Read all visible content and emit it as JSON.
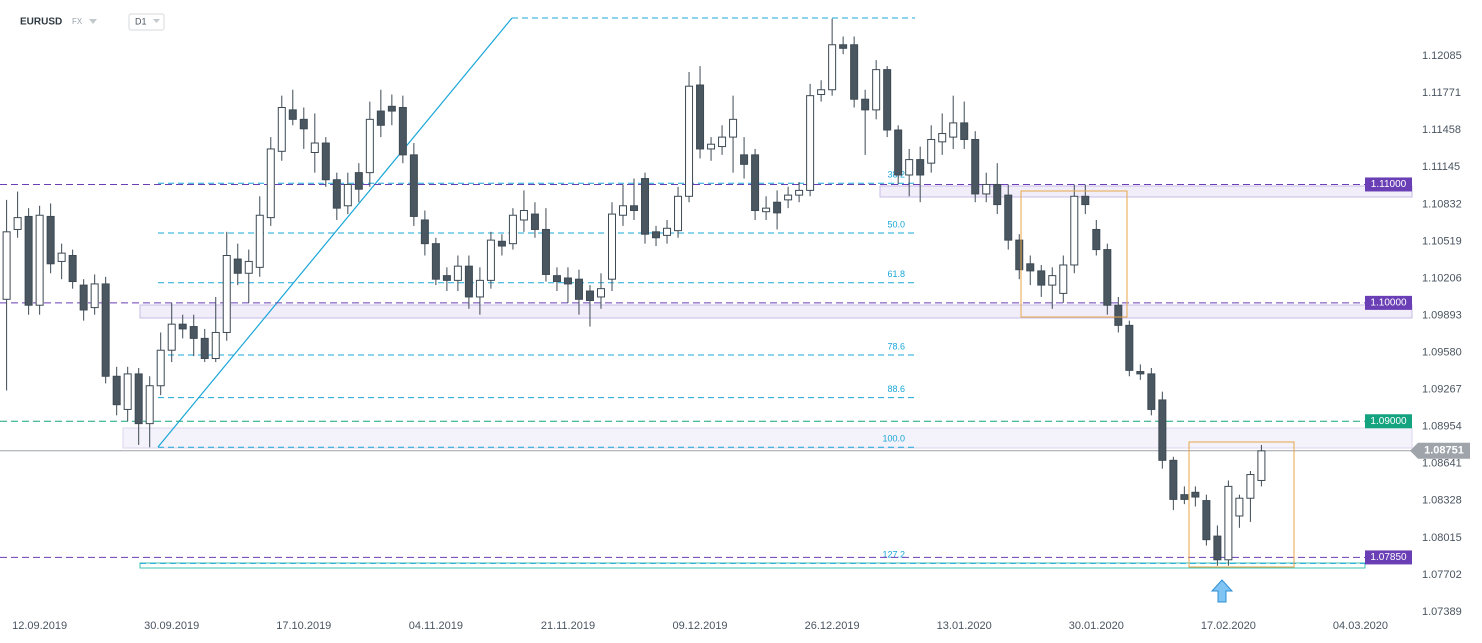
{
  "header": {
    "symbol": "EURUSD",
    "market": "FX",
    "interval": "D1"
  },
  "chart_data": {
    "type": "candlestick",
    "open": [
      1.1003,
      1.1062,
      1.1073,
      1.0998,
      1.1073,
      1.1035,
      1.104,
      1.1015,
      1.0996,
      1.1016,
      1.0938,
      1.091,
      1.094,
      1.0898,
      1.093,
      1.096,
      1.0982,
      1.098,
      1.097,
      1.0953,
      1.0975,
      1.1037,
      1.1025,
      1.103,
      1.1072,
      1.1128,
      1.1163,
      1.1155,
      1.1127,
      1.1135,
      1.1104,
      1.1082,
      1.111,
      1.111,
      1.1162,
      1.1166,
      1.1165,
      1.1125,
      1.107,
      1.105,
      1.1023,
      1.1019,
      1.1031,
      1.1005,
      1.1019,
      1.1052,
      1.105,
      1.107,
      1.1075,
      1.1062,
      1.1023,
      1.1021,
      1.102,
      1.101,
      1.1005,
      1.102,
      1.1074,
      1.1082,
      1.1105,
      1.106,
      1.1057,
      1.1061,
      1.109,
      1.1184,
      1.113,
      1.1132,
      1.114,
      1.1125,
      1.1125,
      1.1077,
      1.1085,
      1.1087,
      1.1091,
      1.1095,
      1.1176,
      1.118,
      1.1218,
      1.1218,
      1.1172,
      1.1163,
      1.1197,
      1.1146,
      1.1108,
      1.1121,
      1.1118,
      1.1136,
      1.114,
      1.1152,
      1.1138,
      1.1092,
      1.11,
      1.1091,
      1.1053,
      1.1033,
      1.1027,
      1.1015,
      1.1008,
      1.1032,
      1.109,
      1.1062,
      1.1045,
      1.0998,
      1.0981,
      1.0942,
      1.094,
      1.0918,
      1.0867,
      1.0838,
      1.084,
      1.0833,
      1.0803,
      1.0783,
      1.082,
      1.0835,
      1.085
    ],
    "high": [
      1.1087,
      1.1094,
      1.108,
      1.1082,
      1.1084,
      1.105,
      1.1045,
      1.102,
      1.1024,
      1.1022,
      1.0946,
      1.0946,
      1.0945,
      1.0938,
      1.0975,
      1.1,
      1.099,
      1.099,
      1.0978,
      1.1005,
      1.106,
      1.105,
      1.1045,
      1.109,
      1.114,
      1.1175,
      1.118,
      1.1165,
      1.116,
      1.114,
      1.111,
      1.111,
      1.1118,
      1.117,
      1.118,
      1.1176,
      1.1175,
      1.1135,
      1.1078,
      1.1055,
      1.103,
      1.104,
      1.104,
      1.103,
      1.106,
      1.1058,
      1.108,
      1.1095,
      1.1085,
      1.108,
      1.103,
      1.103,
      1.1028,
      1.1015,
      1.1025,
      1.1085,
      1.11,
      1.1105,
      1.111,
      1.1065,
      1.107,
      1.1098,
      1.1195,
      1.12,
      1.114,
      1.115,
      1.1175,
      1.114,
      1.113,
      1.109,
      1.1095,
      1.1098,
      1.1102,
      1.1185,
      1.1188,
      1.124,
      1.1225,
      1.1225,
      1.118,
      1.1205,
      1.12,
      1.115,
      1.113,
      1.1132,
      1.115,
      1.116,
      1.1175,
      1.117,
      1.1145,
      1.111,
      1.1118,
      1.11,
      1.1058,
      1.104,
      1.1032,
      1.103,
      1.104,
      1.11,
      1.11,
      1.107,
      1.105,
      1.1005,
      1.0985,
      1.0948,
      1.0945,
      1.0925,
      1.087,
      1.0845,
      1.0845,
      1.0838,
      1.0812,
      1.085,
      1.0838,
      1.0858,
      1.088
    ],
    "low": [
      1.0926,
      1.1055,
      1.099,
      1.099,
      1.1025,
      1.102,
      1.1012,
      1.0985,
      1.099,
      1.0932,
      1.0905,
      1.09,
      1.088,
      1.0878,
      1.0922,
      1.095,
      1.097,
      1.0955,
      1.095,
      1.095,
      1.0968,
      1.1015,
      1.1,
      1.1022,
      1.1065,
      1.112,
      1.115,
      1.113,
      1.111,
      1.1098,
      1.107,
      1.1075,
      1.1085,
      1.1098,
      1.114,
      1.115,
      1.1118,
      1.1065,
      1.104,
      1.1015,
      1.101,
      1.101,
      1.0995,
      1.099,
      1.1012,
      1.104,
      1.1045,
      1.106,
      1.1055,
      1.1018,
      1.101,
      1.1,
      1.099,
      1.098,
      1.0995,
      1.101,
      1.1065,
      1.107,
      1.105,
      1.1048,
      1.105,
      1.1055,
      1.1085,
      1.1122,
      1.112,
      1.1125,
      1.111,
      1.1105,
      1.107,
      1.107,
      1.1062,
      1.108,
      1.1085,
      1.109,
      1.117,
      1.1175,
      1.121,
      1.1165,
      1.1125,
      1.1155,
      1.114,
      1.11,
      1.109,
      1.1085,
      1.111,
      1.1125,
      1.113,
      1.113,
      1.1085,
      1.1085,
      1.1075,
      1.1045,
      1.102,
      1.1015,
      1.1005,
      1.0995,
      1.1,
      1.1025,
      1.1075,
      1.104,
      1.099,
      1.0975,
      1.0938,
      1.0935,
      1.0905,
      1.086,
      1.0825,
      1.083,
      1.0828,
      1.0795,
      1.0778,
      1.0778,
      1.081,
      1.0815,
      1.0845
    ],
    "close": [
      1.106,
      1.1072,
      1.0998,
      1.1074,
      1.1033,
      1.1042,
      1.1018,
      1.0994,
      1.1016,
      1.0938,
      1.0914,
      1.094,
      1.0898,
      1.093,
      1.096,
      1.0982,
      1.0978,
      1.097,
      1.0953,
      1.0975,
      1.104,
      1.1025,
      1.1035,
      1.1074,
      1.113,
      1.1165,
      1.1155,
      1.1147,
      1.1135,
      1.1104,
      1.108,
      1.11,
      1.1096,
      1.1155,
      1.115,
      1.1162,
      1.1125,
      1.1073,
      1.105,
      1.102,
      1.1019,
      1.1031,
      1.1005,
      1.1019,
      1.1053,
      1.1048,
      1.1074,
      1.1078,
      1.1062,
      1.1024,
      1.1018,
      1.1016,
      1.1003,
      1.1002,
      1.1012,
      1.1075,
      1.1082,
      1.1078,
      1.1058,
      1.1055,
      1.1063,
      1.109,
      1.1183,
      1.113,
      1.1134,
      1.114,
      1.1155,
      1.1117,
      1.1078,
      1.108,
      1.1076,
      1.1091,
      1.1095,
      1.1175,
      1.118,
      1.1218,
      1.1215,
      1.1172,
      1.1163,
      1.1197,
      1.1146,
      1.1108,
      1.1121,
      1.1108,
      1.1138,
      1.1143,
      1.1152,
      1.1138,
      1.1092,
      1.11,
      1.1083,
      1.1053,
      1.1028,
      1.1027,
      1.1015,
      1.1023,
      1.1032,
      1.109,
      1.1083,
      1.1045,
      1.0998,
      1.0981,
      1.0943,
      1.094,
      1.091,
      1.0867,
      1.0834,
      1.0834,
      1.0836,
      1.08,
      1.0783,
      1.0845,
      1.0835,
      1.0855,
      1.0875
    ],
    "bull_color": "#ffffff",
    "bear_color": "#4a5761",
    "outline_color": "#3d4a54",
    "xlim": [
      -0.6,
      127.5
    ],
    "ylim": [
      1.07389,
      1.12558
    ],
    "xticks": [
      {
        "value": 3,
        "label": "12.09.2019"
      },
      {
        "value": 15,
        "label": "30.09.2019"
      },
      {
        "value": 27,
        "label": "17.10.2019"
      },
      {
        "value": 39,
        "label": "04.11.2019"
      },
      {
        "value": 51,
        "label": "21.11.2019"
      },
      {
        "value": 63,
        "label": "09.12.2019"
      },
      {
        "value": 75,
        "label": "26.12.2019"
      },
      {
        "value": 87,
        "label": "13.01.2020"
      },
      {
        "value": 99,
        "label": "30.01.2020"
      },
      {
        "value": 111,
        "label": "17.02.2020"
      },
      {
        "value": 123,
        "label": "04.03.2020"
      }
    ],
    "yticks": [
      1.12085,
      1.11771,
      1.11458,
      1.11145,
      1.10832,
      1.10519,
      1.10206,
      1.09893,
      {
        "value": 1.0958,
        "label": "1.09580"
      },
      1.09267,
      1.08954,
      1.08641,
      1.08328,
      1.08015,
      1.07702,
      1.07389
    ],
    "levels": [
      {
        "value": 1.11,
        "label": "1.11000",
        "color": "#6a3fb5"
      },
      {
        "value": 1.1,
        "label": "1.10000",
        "color": "#6a3fb5"
      },
      {
        "value": 1.09,
        "label": "1.09000",
        "color": "#14a37f"
      },
      {
        "value": 1.0785,
        "label": "1.07850",
        "color": "#6a3fb5"
      }
    ],
    "last_price": {
      "value": 1.08751,
      "color": "#9ea4aa"
    },
    "fib_color": "#1aa7d8",
    "fib_levels": [
      {
        "label": "38.2",
        "value": 1.1101
      },
      {
        "label": "50.0",
        "value": 1.1059
      },
      {
        "label": "61.8",
        "value": 1.1017
      },
      {
        "label": "78.6",
        "value": 1.0956
      },
      {
        "label": "88.6",
        "value": 1.092
      },
      {
        "label": "100.0",
        "value": 1.0878
      },
      {
        "label": "127.2",
        "value": 1.078
      }
    ]
  }
}
